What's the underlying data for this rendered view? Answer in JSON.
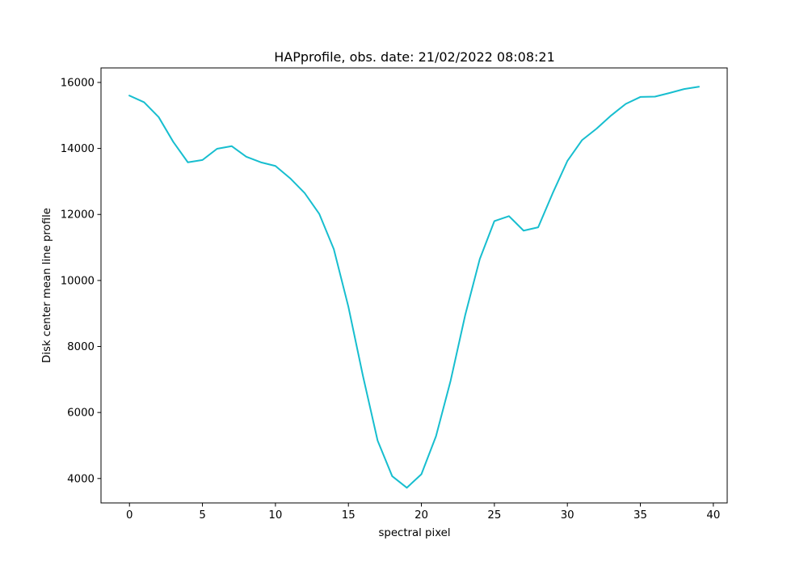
{
  "chart_data": {
    "type": "line",
    "title": "HAPprofile, obs. date: 21/02/2022 08:08:21",
    "xlabel": "spectral pixel",
    "ylabel": "Disk center mean line profile",
    "xlim": [
      -1.95,
      40.95
    ],
    "ylim": [
      3260,
      16440
    ],
    "xticks": [
      0,
      5,
      10,
      15,
      20,
      25,
      30,
      35,
      40
    ],
    "yticks": [
      4000,
      6000,
      8000,
      10000,
      12000,
      14000,
      16000
    ],
    "xtick_labels": [
      "0",
      "5",
      "10",
      "15",
      "20",
      "25",
      "30",
      "35",
      "40"
    ],
    "ytick_labels": [
      "4000",
      "6000",
      "8000",
      "10000",
      "12000",
      "14000",
      "16000"
    ],
    "grid": false,
    "legend": "none",
    "series": [
      {
        "color": "#17becf",
        "x": [
          0,
          1,
          2,
          3,
          4,
          5,
          6,
          7,
          8,
          9,
          10,
          11,
          12,
          13,
          14,
          15,
          16,
          17,
          18,
          19,
          20,
          21,
          22,
          23,
          24,
          25,
          26,
          27,
          28,
          29,
          30,
          31,
          32,
          33,
          34,
          35,
          36,
          37,
          38,
          39
        ],
        "y": [
          15600,
          15400,
          14950,
          14200,
          13580,
          13650,
          13990,
          14070,
          13750,
          13580,
          13470,
          13100,
          12650,
          12020,
          10950,
          9200,
          7100,
          5150,
          4070,
          3720,
          4130,
          5280,
          6960,
          8950,
          10650,
          11800,
          11950,
          11510,
          11610,
          12650,
          13620,
          14250,
          14600,
          15000,
          15350,
          15560,
          15570,
          15680,
          15800,
          15870
        ]
      }
    ]
  }
}
